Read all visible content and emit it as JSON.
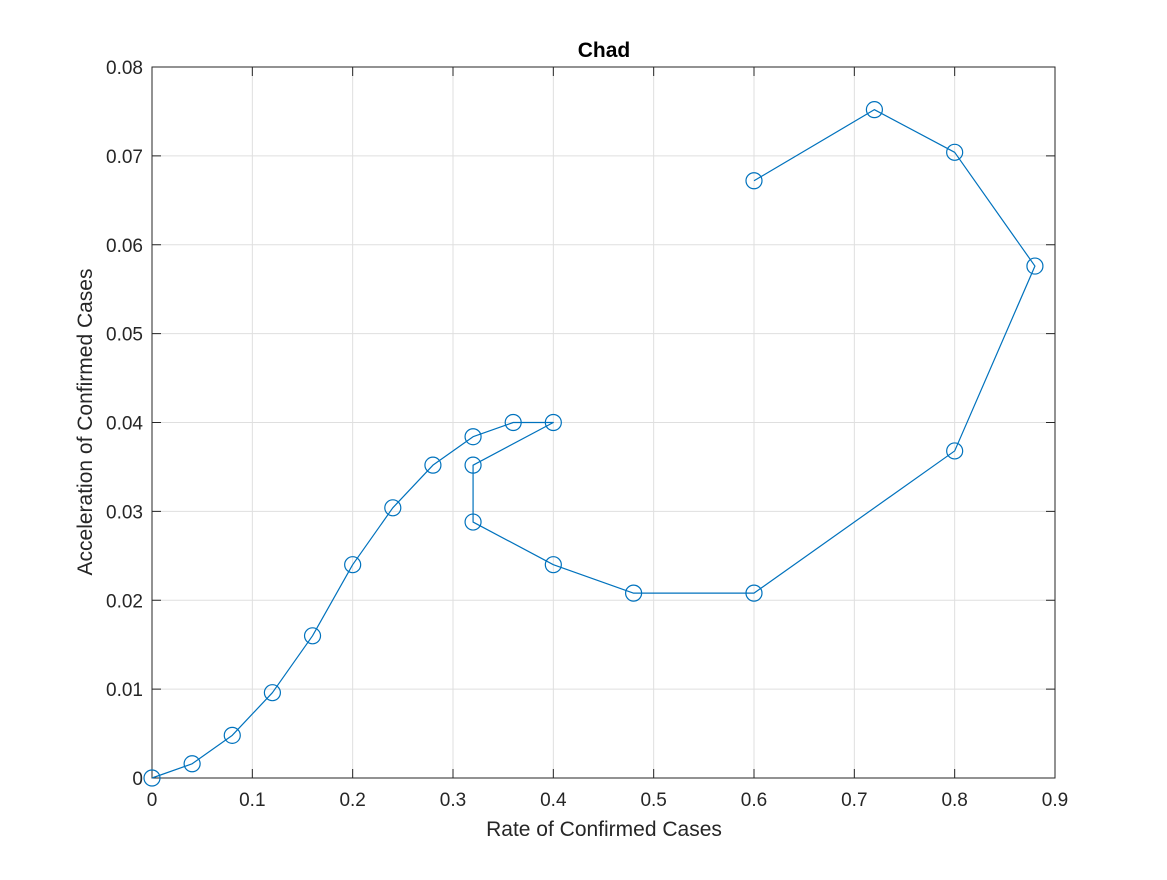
{
  "chart_data": {
    "type": "line",
    "title": "Chad",
    "xlabel": "Rate of Confirmed Cases",
    "ylabel": "Acceleration of Confirmed Cases",
    "xlim": [
      0,
      0.9
    ],
    "ylim": [
      0,
      0.08
    ],
    "xticks": [
      0,
      0.1,
      0.2,
      0.3,
      0.4,
      0.5,
      0.6,
      0.7,
      0.8,
      0.9
    ],
    "xtick_labels": [
      "0",
      "0.1",
      "0.2",
      "0.3",
      "0.4",
      "0.5",
      "0.6",
      "0.7",
      "0.8",
      "0.9"
    ],
    "yticks": [
      0,
      0.01,
      0.02,
      0.03,
      0.04,
      0.05,
      0.06,
      0.07,
      0.08
    ],
    "ytick_labels": [
      "0",
      "0.01",
      "0.02",
      "0.03",
      "0.04",
      "0.05",
      "0.06",
      "0.07",
      "0.08"
    ],
    "grid": true,
    "marker": "circle-open",
    "line_color": "#0072BD",
    "series": [
      {
        "x": [
          0,
          0.04,
          0.08,
          0.12,
          0.16,
          0.2,
          0.24,
          0.28,
          0.32,
          0.36,
          0.4,
          0.32,
          0.32,
          0.4,
          0.48,
          0.6,
          0.8,
          0.88,
          0.8,
          0.72,
          0.6
        ],
        "y": [
          0,
          0.0016,
          0.0048,
          0.0096,
          0.016,
          0.024,
          0.0304,
          0.0352,
          0.0384,
          0.04,
          0.04,
          0.0352,
          0.0288,
          0.024,
          0.0208,
          0.0208,
          0.0368,
          0.0576,
          0.0704,
          0.0752,
          0.0672
        ]
      }
    ]
  }
}
